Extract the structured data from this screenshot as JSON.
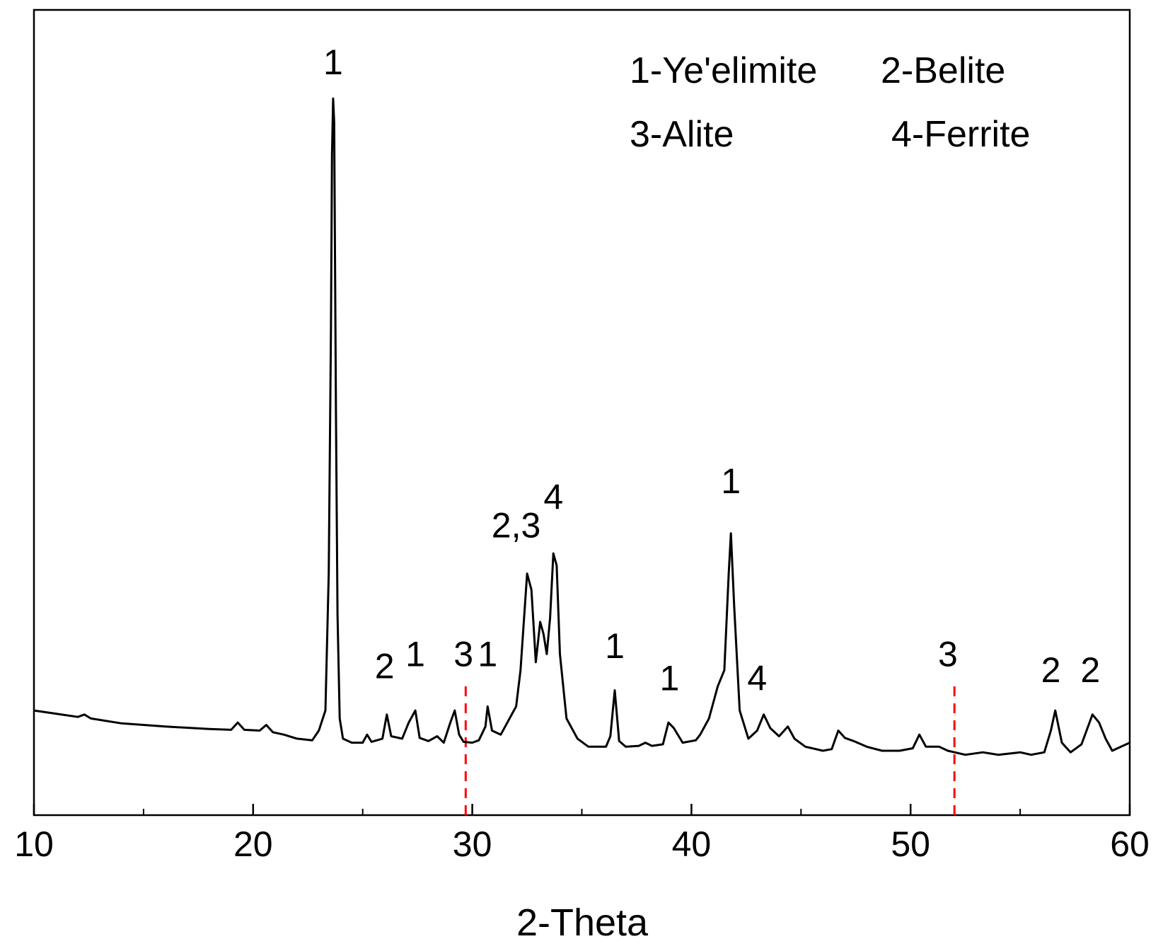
{
  "chart_data": {
    "type": "line",
    "xlabel": "2-Theta",
    "ylabel": "",
    "xlim": [
      10,
      60
    ],
    "ylim": [
      0,
      100
    ],
    "x_ticks": [
      10,
      20,
      30,
      40,
      50,
      60
    ],
    "x_minor_step": 5,
    "y_ticks_shown": false,
    "grid": false,
    "legend_position": "top-right",
    "legend": {
      "row1": [
        "1-Ye'elimite",
        "2-Belite"
      ],
      "row2": [
        "3-Alite",
        "4-Ferrite"
      ]
    },
    "series": [
      {
        "color": "#000000",
        "points": [
          [
            10,
            13.0
          ],
          [
            11,
            12.6
          ],
          [
            12,
            12.2
          ],
          [
            12.3,
            12.5
          ],
          [
            12.6,
            12.0
          ],
          [
            14,
            11.4
          ],
          [
            16,
            11.0
          ],
          [
            18,
            10.7
          ],
          [
            19,
            10.6
          ],
          [
            19.3,
            11.5
          ],
          [
            19.6,
            10.6
          ],
          [
            20.3,
            10.5
          ],
          [
            20.6,
            11.2
          ],
          [
            20.9,
            10.3
          ],
          [
            21.4,
            10.0
          ],
          [
            22,
            9.5
          ],
          [
            22.7,
            9.3
          ],
          [
            23.0,
            10.5
          ],
          [
            23.3,
            13.0
          ],
          [
            23.45,
            30
          ],
          [
            23.55,
            60
          ],
          [
            23.6,
            82
          ],
          [
            23.65,
            89
          ],
          [
            23.7,
            86
          ],
          [
            23.78,
            50
          ],
          [
            23.85,
            25
          ],
          [
            23.95,
            12
          ],
          [
            24.1,
            9.5
          ],
          [
            24.5,
            9.0
          ],
          [
            25.0,
            9.0
          ],
          [
            25.2,
            10.0
          ],
          [
            25.4,
            9.1
          ],
          [
            25.9,
            9.5
          ],
          [
            26.1,
            12.5
          ],
          [
            26.3,
            9.8
          ],
          [
            26.8,
            9.5
          ],
          [
            27.1,
            11.5
          ],
          [
            27.4,
            13.0
          ],
          [
            27.6,
            9.6
          ],
          [
            28.0,
            9.2
          ],
          [
            28.4,
            9.8
          ],
          [
            28.7,
            9.0
          ],
          [
            29.0,
            11.5
          ],
          [
            29.2,
            13.0
          ],
          [
            29.4,
            10.0
          ],
          [
            29.6,
            9.1
          ],
          [
            30.0,
            9.0
          ],
          [
            30.3,
            9.3
          ],
          [
            30.6,
            11.0
          ],
          [
            30.7,
            13.5
          ],
          [
            30.9,
            10.5
          ],
          [
            31.3,
            10.0
          ],
          [
            31.7,
            12.0
          ],
          [
            32.0,
            13.5
          ],
          [
            32.2,
            18.0
          ],
          [
            32.5,
            30.0
          ],
          [
            32.7,
            28.0
          ],
          [
            32.9,
            19.0
          ],
          [
            33.1,
            24.0
          ],
          [
            33.25,
            22.5
          ],
          [
            33.4,
            20.0
          ],
          [
            33.55,
            24.5
          ],
          [
            33.7,
            32.5
          ],
          [
            33.85,
            31.0
          ],
          [
            34.0,
            20.0
          ],
          [
            34.3,
            12.0
          ],
          [
            34.8,
            9.5
          ],
          [
            35.3,
            8.5
          ],
          [
            36.1,
            8.5
          ],
          [
            36.3,
            9.8
          ],
          [
            36.5,
            15.5
          ],
          [
            36.7,
            9.2
          ],
          [
            37.0,
            8.5
          ],
          [
            37.6,
            8.6
          ],
          [
            37.9,
            9.0
          ],
          [
            38.2,
            8.6
          ],
          [
            38.7,
            8.8
          ],
          [
            38.95,
            11.5
          ],
          [
            39.2,
            10.8
          ],
          [
            39.6,
            9.0
          ],
          [
            40.2,
            9.3
          ],
          [
            40.4,
            10.0
          ],
          [
            40.8,
            12.0
          ],
          [
            41.2,
            16.0
          ],
          [
            41.5,
            18.0
          ],
          [
            41.7,
            30.0
          ],
          [
            41.8,
            35.0
          ],
          [
            41.95,
            26.0
          ],
          [
            42.2,
            13.0
          ],
          [
            42.6,
            9.5
          ],
          [
            43.0,
            10.5
          ],
          [
            43.3,
            12.5
          ],
          [
            43.6,
            10.8
          ],
          [
            44.0,
            9.8
          ],
          [
            44.4,
            11.0
          ],
          [
            44.7,
            9.5
          ],
          [
            45.2,
            8.5
          ],
          [
            46.0,
            8.0
          ],
          [
            46.4,
            8.2
          ],
          [
            46.7,
            10.5
          ],
          [
            47.0,
            9.6
          ],
          [
            47.4,
            9.2
          ],
          [
            48.0,
            8.5
          ],
          [
            48.7,
            8.0
          ],
          [
            49.5,
            8.0
          ],
          [
            50.1,
            8.3
          ],
          [
            50.4,
            10.0
          ],
          [
            50.7,
            8.5
          ],
          [
            51.3,
            8.5
          ],
          [
            51.7,
            8.0
          ],
          [
            52.5,
            7.5
          ],
          [
            53.3,
            7.8
          ],
          [
            54.0,
            7.5
          ],
          [
            55.0,
            7.8
          ],
          [
            55.5,
            7.5
          ],
          [
            56.1,
            7.8
          ],
          [
            56.4,
            10.5
          ],
          [
            56.6,
            13.0
          ],
          [
            56.9,
            9.0
          ],
          [
            57.3,
            7.8
          ],
          [
            57.8,
            8.8
          ],
          [
            58.3,
            12.5
          ],
          [
            58.6,
            11.5
          ],
          [
            58.9,
            9.5
          ],
          [
            59.2,
            8.0
          ],
          [
            59.6,
            8.5
          ],
          [
            60,
            9.0
          ]
        ]
      }
    ],
    "peak_labels": [
      {
        "text": "1",
        "x": 23.65,
        "y": 92
      },
      {
        "text": "2",
        "x": 26.0,
        "y": 17
      },
      {
        "text": "1",
        "x": 27.4,
        "y": 18.5
      },
      {
        "text": "3",
        "x": 29.6,
        "y": 18.5
      },
      {
        "text": "1",
        "x": 30.7,
        "y": 18.5
      },
      {
        "text": "2,3",
        "x": 32.0,
        "y": 34.5
      },
      {
        "text": "4",
        "x": 33.7,
        "y": 38.0
      },
      {
        "text": "1",
        "x": 36.5,
        "y": 19.5
      },
      {
        "text": "1",
        "x": 39.0,
        "y": 15.5
      },
      {
        "text": "1",
        "x": 41.8,
        "y": 40.0
      },
      {
        "text": "4",
        "x": 43.0,
        "y": 15.5
      },
      {
        "text": "3",
        "x": 51.7,
        "y": 18.5
      },
      {
        "text": "2",
        "x": 56.4,
        "y": 16.5
      },
      {
        "text": "2",
        "x": 58.2,
        "y": 16.5
      }
    ],
    "reference_lines": [
      {
        "x": 29.7,
        "y_from": 0,
        "y_to": 16.5,
        "color": "#ff0000",
        "style": "dashed"
      },
      {
        "x": 52.0,
        "y_from": 0,
        "y_to": 16.5,
        "color": "#ff0000",
        "style": "dashed"
      }
    ]
  }
}
